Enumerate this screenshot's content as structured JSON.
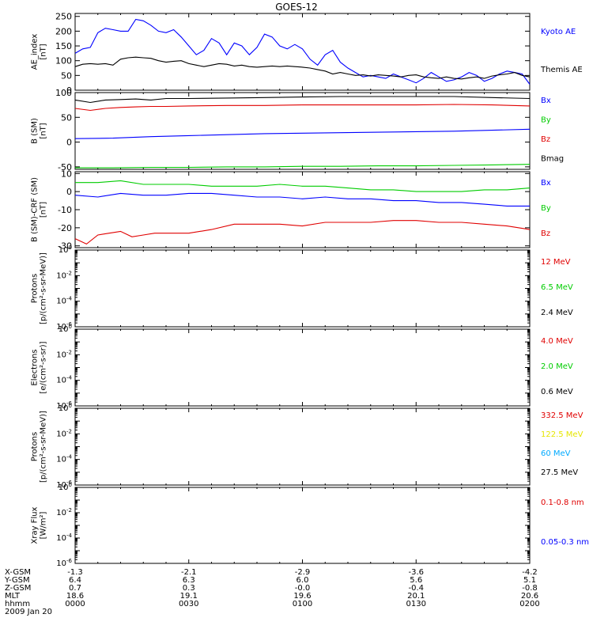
{
  "title": "GOES-12",
  "colors": {
    "black": "#000000",
    "blue": "#0000ff",
    "red": "#e00000",
    "green": "#00cc00",
    "yellow": "#e6e600",
    "cyan": "#00aaff"
  },
  "x_axis": {
    "ticks": [
      "0000",
      "0030",
      "0100",
      "0130",
      "0200"
    ],
    "row_labels": [
      "X-GSM",
      "Y-GSM",
      "Z-GSM",
      "MLT",
      "hhmm"
    ],
    "rows": [
      [
        "-1.3",
        "-2.1",
        "-2.9",
        "-3.6",
        "-4.2"
      ],
      [
        "6.4",
        "6.3",
        "6.0",
        "5.6",
        "5.1"
      ],
      [
        "0.7",
        "0.3",
        "-0.0",
        "-0.4",
        "-0.8"
      ],
      [
        "18.6",
        "19.1",
        "19.6",
        "20.1",
        "20.6"
      ],
      [
        "0000",
        "0030",
        "0100",
        "0130",
        "0200"
      ]
    ],
    "date": "2009 Jan 20"
  },
  "chart_data": [
    {
      "type": "line",
      "ylabel": "AE_index\n[nT]",
      "ylim": [
        0,
        260
      ],
      "yticks": [
        0,
        50,
        100,
        150,
        200,
        250
      ],
      "series": [
        {
          "name": "Kyoto AE",
          "color": "#0000ff",
          "x": [
            0,
            2,
            4,
            6,
            8,
            10,
            12,
            14,
            16,
            18,
            20,
            22,
            24,
            26,
            28,
            30,
            32,
            34,
            36,
            38,
            40,
            42,
            44,
            46,
            48,
            50,
            52,
            54,
            56,
            58,
            60,
            62,
            64,
            66,
            68,
            70,
            72,
            74,
            76,
            78,
            80,
            82,
            84,
            86,
            88,
            90,
            92,
            94,
            96,
            98,
            100,
            102,
            104,
            106,
            108,
            110,
            112,
            114,
            116,
            118,
            120
          ],
          "y": [
            125,
            140,
            145,
            195,
            210,
            205,
            200,
            200,
            240,
            235,
            220,
            200,
            195,
            205,
            180,
            150,
            120,
            135,
            175,
            160,
            120,
            160,
            150,
            120,
            145,
            190,
            180,
            150,
            140,
            155,
            140,
            105,
            85,
            120,
            135,
            95,
            75,
            60,
            45,
            50,
            45,
            40,
            55,
            45,
            35,
            25,
            40,
            60,
            45,
            30,
            35,
            45,
            60,
            50,
            30,
            40,
            55,
            65,
            60,
            55,
            20
          ]
        },
        {
          "name": "Themis AE",
          "color": "#000000",
          "x": [
            0,
            2,
            4,
            6,
            8,
            10,
            12,
            14,
            16,
            18,
            20,
            22,
            24,
            26,
            28,
            30,
            32,
            34,
            36,
            38,
            40,
            42,
            44,
            46,
            48,
            50,
            52,
            54,
            56,
            58,
            60,
            62,
            64,
            66,
            68,
            70,
            72,
            74,
            76,
            78,
            80,
            82,
            84,
            86,
            88,
            90,
            92,
            94,
            96,
            98,
            100,
            102,
            104,
            106,
            108,
            110,
            112,
            114,
            116,
            118,
            120
          ],
          "y": [
            80,
            88,
            90,
            88,
            90,
            85,
            105,
            110,
            112,
            110,
            108,
            100,
            95,
            98,
            100,
            90,
            85,
            80,
            85,
            90,
            88,
            82,
            85,
            80,
            78,
            80,
            82,
            80,
            82,
            80,
            78,
            75,
            70,
            65,
            55,
            60,
            55,
            50,
            52,
            48,
            52,
            50,
            48,
            45,
            50,
            52,
            45,
            42,
            40,
            45,
            40,
            38,
            42,
            45,
            40,
            48,
            52,
            55,
            60,
            50,
            45
          ]
        }
      ],
      "labels": [
        {
          "text": "Kyoto AE",
          "color": "#0000ff"
        },
        {
          "text": "Themis AE",
          "color": "#000000"
        }
      ]
    },
    {
      "type": "line",
      "ylabel": "B (SM)\n[nT]",
      "ylim": [
        -55,
        100
      ],
      "yticks": [
        -50,
        0,
        50,
        100
      ],
      "series": [
        {
          "name": "Bx",
          "color": "#0000ff",
          "x": [
            0,
            10,
            20,
            30,
            40,
            50,
            60,
            70,
            80,
            90,
            100,
            110,
            120
          ],
          "y": [
            7,
            8,
            11,
            13,
            15,
            17,
            18,
            19,
            20,
            21,
            22,
            24,
            26
          ]
        },
        {
          "name": "By",
          "color": "#00cc00",
          "x": [
            0,
            10,
            20,
            30,
            40,
            50,
            60,
            70,
            80,
            90,
            100,
            110,
            120
          ],
          "y": [
            -52,
            -52,
            -51,
            -51,
            -50,
            -50,
            -49,
            -49,
            -48,
            -48,
            -47,
            -46,
            -45
          ]
        },
        {
          "name": "Bz",
          "color": "#e00000",
          "x": [
            0,
            4,
            8,
            12,
            16,
            20,
            24,
            30,
            40,
            50,
            60,
            70,
            80,
            90,
            100,
            110,
            120
          ],
          "y": [
            68,
            64,
            68,
            70,
            71,
            72,
            72,
            73,
            74,
            74,
            75,
            75,
            75,
            75,
            76,
            75,
            73
          ]
        },
        {
          "name": "Bmag",
          "color": "#000000",
          "x": [
            0,
            4,
            8,
            12,
            16,
            20,
            24,
            30,
            40,
            50,
            60,
            70,
            80,
            90,
            100,
            110,
            120
          ],
          "y": [
            85,
            80,
            85,
            86,
            87,
            85,
            88,
            88,
            89,
            90,
            91,
            92,
            92,
            92,
            92,
            90,
            88
          ]
        }
      ],
      "labels": [
        {
          "text": "Bx",
          "color": "#0000ff"
        },
        {
          "text": "By",
          "color": "#00cc00"
        },
        {
          "text": "Bz",
          "color": "#e00000"
        },
        {
          "text": "Bmag",
          "color": "#000000"
        }
      ]
    },
    {
      "type": "line",
      "ylabel": "B (SM)-CRF (SM)\n[nT]",
      "ylim": [
        -31,
        11
      ],
      "yticks": [
        -30,
        -20,
        -10,
        0,
        10
      ],
      "series": [
        {
          "name": "Bx",
          "color": "#0000ff",
          "x": [
            0,
            6,
            12,
            18,
            24,
            30,
            36,
            42,
            48,
            54,
            60,
            66,
            72,
            78,
            84,
            90,
            96,
            102,
            108,
            114,
            120
          ],
          "y": [
            -2,
            -3,
            -1,
            -2,
            -2,
            -1,
            -1,
            -2,
            -3,
            -3,
            -4,
            -3,
            -4,
            -4,
            -5,
            -5,
            -6,
            -6,
            -7,
            -8,
            -8
          ]
        },
        {
          "name": "By",
          "color": "#00cc00",
          "x": [
            0,
            6,
            12,
            18,
            24,
            30,
            36,
            42,
            48,
            54,
            60,
            66,
            72,
            78,
            84,
            90,
            96,
            102,
            108,
            114,
            120
          ],
          "y": [
            5,
            5,
            6,
            4,
            4,
            4,
            3,
            3,
            3,
            4,
            3,
            3,
            2,
            1,
            1,
            0,
            0,
            0,
            1,
            1,
            2
          ]
        },
        {
          "name": "Bz",
          "color": "#e00000",
          "x": [
            0,
            3,
            6,
            9,
            12,
            15,
            18,
            21,
            24,
            30,
            36,
            42,
            48,
            54,
            60,
            66,
            72,
            78,
            84,
            90,
            96,
            102,
            108,
            114,
            120
          ],
          "y": [
            -26,
            -29,
            -24,
            -23,
            -22,
            -25,
            -24,
            -23,
            -23,
            -23,
            -21,
            -18,
            -18,
            -18,
            -19,
            -17,
            -17,
            -17,
            -16,
            -16,
            -17,
            -17,
            -18,
            -19,
            -21
          ]
        }
      ],
      "labels": [
        {
          "text": "Bx",
          "color": "#0000ff"
        },
        {
          "text": "By",
          "color": "#00cc00"
        },
        {
          "text": "Bz",
          "color": "#e00000"
        }
      ]
    },
    {
      "type": "line",
      "ylabel": "Protons\n[p/(cm²-s-sr-MeV)]",
      "ylog": [
        -6,
        0
      ],
      "series": [],
      "labels": [
        {
          "text": "12 MeV",
          "color": "#e00000"
        },
        {
          "text": "6.5 MeV",
          "color": "#00cc00"
        },
        {
          "text": "2.4 MeV",
          "color": "#000000"
        }
      ]
    },
    {
      "type": "line",
      "ylabel": "Electrons\n[e/(cm²-s-sr)]",
      "ylog": [
        -6,
        0
      ],
      "series": [],
      "labels": [
        {
          "text": "4.0 MeV",
          "color": "#e00000"
        },
        {
          "text": "2.0 MeV",
          "color": "#00cc00"
        },
        {
          "text": "0.6 MeV",
          "color": "#000000"
        }
      ]
    },
    {
      "type": "line",
      "ylabel": "Protons\n[p/(cm²-s-sr-MeV)]",
      "ylog": [
        -6,
        0
      ],
      "series": [],
      "labels": [
        {
          "text": "332.5 MeV",
          "color": "#e00000"
        },
        {
          "text": "122.5 MeV",
          "color": "#e6e600"
        },
        {
          "text": "60 MeV",
          "color": "#00aaff"
        },
        {
          "text": "27.5 MeV",
          "color": "#000000"
        }
      ]
    },
    {
      "type": "line",
      "ylabel": "Xray Flux\n[W/m²]",
      "ylog": [
        -6,
        0
      ],
      "series": [],
      "labels": [
        {
          "text": "0.1-0.8 nm",
          "color": "#e00000"
        },
        {
          "text": "0.05-0.3 nm",
          "color": "#0000ff"
        }
      ]
    }
  ]
}
